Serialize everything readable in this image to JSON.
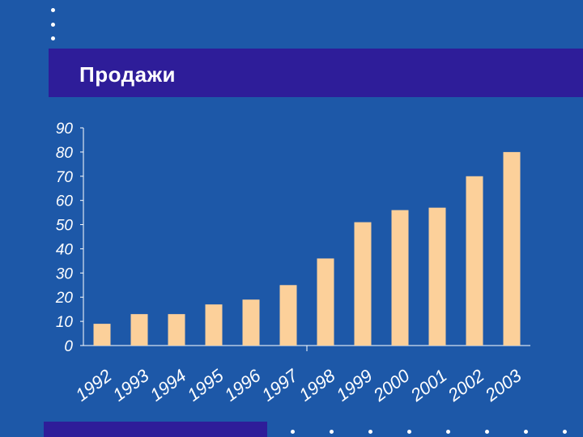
{
  "slide": {
    "title": "Продажи",
    "background_color": "#1d58a8",
    "band_color": "#2e1d99",
    "bar_color": "#fcd09a"
  },
  "chart_data": {
    "type": "bar",
    "categories": [
      "1992",
      "1993",
      "1994",
      "1995",
      "1996",
      "1997",
      "1998",
      "1999",
      "2000",
      "2001",
      "2002",
      "2003"
    ],
    "values": [
      9,
      13,
      13,
      17,
      19,
      25,
      36,
      51,
      56,
      57,
      70,
      80
    ],
    "y_ticks": [
      "0",
      "10",
      "20",
      "30",
      "40",
      "50",
      "60",
      "70",
      "80",
      "90"
    ],
    "ylim": [
      0,
      90
    ],
    "grid": false,
    "legend": "none"
  }
}
